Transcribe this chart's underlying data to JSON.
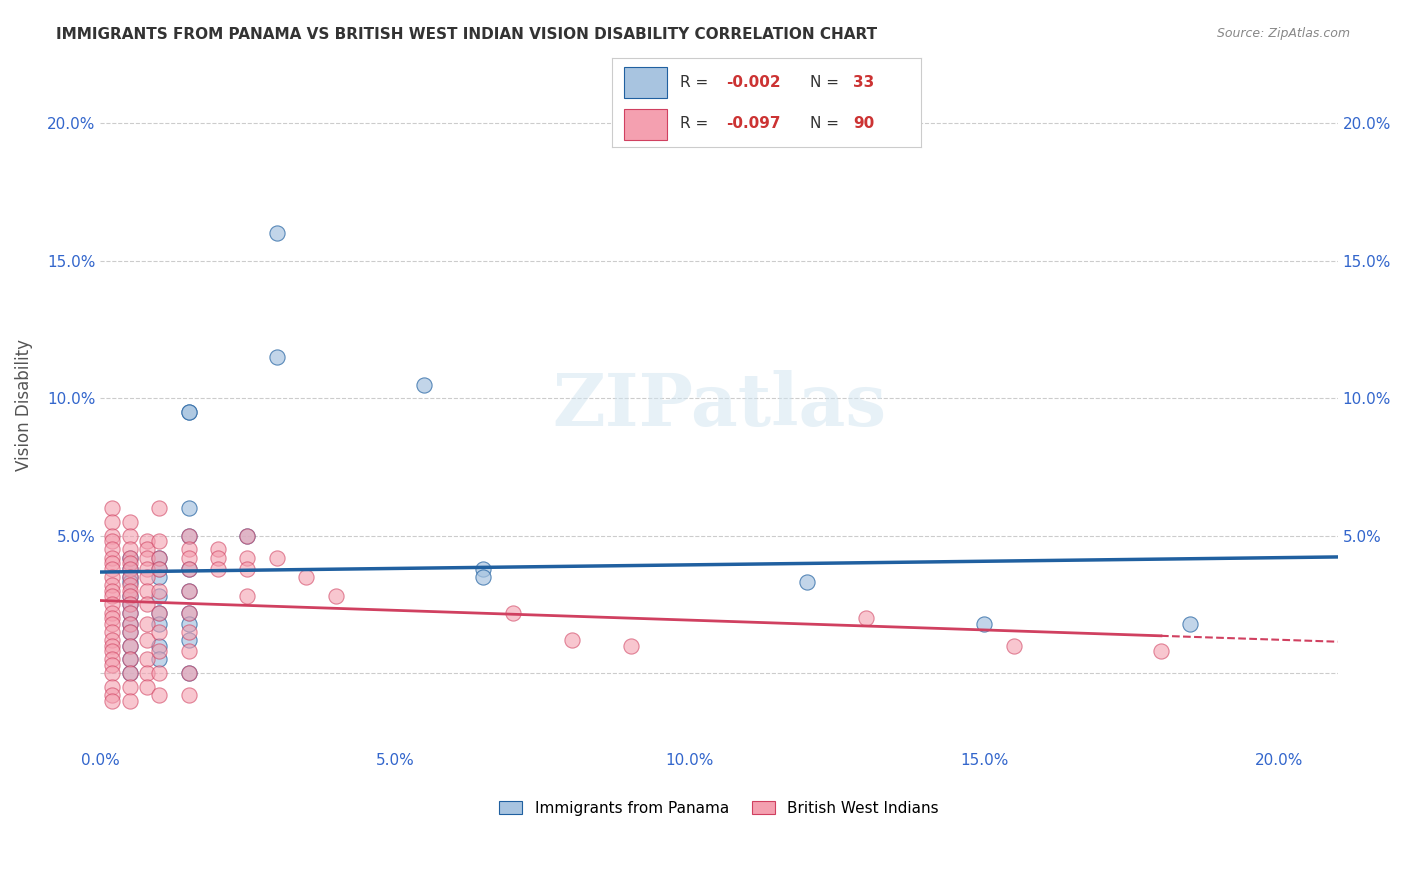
{
  "title": "IMMIGRANTS FROM PANAMA VS BRITISH WEST INDIAN VISION DISABILITY CORRELATION CHART",
  "source": "Source: ZipAtlas.com",
  "ylabel": "Vision Disability",
  "xlim": [
    0.0,
    0.21
  ],
  "ylim": [
    -0.025,
    0.22
  ],
  "color_panama": "#a8c4e0",
  "color_bwi": "#f4a0b0",
  "color_panama_line": "#2060a0",
  "color_bwi_line": "#d04060",
  "background_color": "#ffffff",
  "watermark": "ZIPatlas",
  "panama_scatter": [
    [
      0.005,
      0.038
    ],
    [
      0.005,
      0.042
    ],
    [
      0.005,
      0.035
    ],
    [
      0.005,
      0.033
    ],
    [
      0.005,
      0.028
    ],
    [
      0.005,
      0.025
    ],
    [
      0.005,
      0.022
    ],
    [
      0.005,
      0.018
    ],
    [
      0.005,
      0.015
    ],
    [
      0.005,
      0.01
    ],
    [
      0.005,
      0.005
    ],
    [
      0.005,
      0.0
    ],
    [
      0.01,
      0.042
    ],
    [
      0.01,
      0.038
    ],
    [
      0.01,
      0.035
    ],
    [
      0.01,
      0.028
    ],
    [
      0.01,
      0.022
    ],
    [
      0.01,
      0.018
    ],
    [
      0.01,
      0.01
    ],
    [
      0.01,
      0.005
    ],
    [
      0.015,
      0.095
    ],
    [
      0.015,
      0.095
    ],
    [
      0.015,
      0.06
    ],
    [
      0.015,
      0.05
    ],
    [
      0.015,
      0.038
    ],
    [
      0.015,
      0.03
    ],
    [
      0.015,
      0.022
    ],
    [
      0.015,
      0.018
    ],
    [
      0.015,
      0.012
    ],
    [
      0.015,
      0.0
    ],
    [
      0.03,
      0.16
    ],
    [
      0.03,
      0.115
    ],
    [
      0.025,
      0.05
    ],
    [
      0.055,
      0.105
    ],
    [
      0.065,
      0.038
    ],
    [
      0.065,
      0.035
    ],
    [
      0.12,
      0.033
    ],
    [
      0.15,
      0.018
    ],
    [
      0.185,
      0.018
    ]
  ],
  "bwi_scatter": [
    [
      0.002,
      0.06
    ],
    [
      0.002,
      0.055
    ],
    [
      0.002,
      0.05
    ],
    [
      0.002,
      0.048
    ],
    [
      0.002,
      0.045
    ],
    [
      0.002,
      0.042
    ],
    [
      0.002,
      0.04
    ],
    [
      0.002,
      0.038
    ],
    [
      0.002,
      0.035
    ],
    [
      0.002,
      0.032
    ],
    [
      0.002,
      0.03
    ],
    [
      0.002,
      0.028
    ],
    [
      0.002,
      0.025
    ],
    [
      0.002,
      0.022
    ],
    [
      0.002,
      0.02
    ],
    [
      0.002,
      0.018
    ],
    [
      0.002,
      0.015
    ],
    [
      0.002,
      0.012
    ],
    [
      0.002,
      0.01
    ],
    [
      0.002,
      0.008
    ],
    [
      0.002,
      0.005
    ],
    [
      0.002,
      0.003
    ],
    [
      0.002,
      0.0
    ],
    [
      0.002,
      -0.005
    ],
    [
      0.002,
      -0.008
    ],
    [
      0.002,
      -0.01
    ],
    [
      0.005,
      0.055
    ],
    [
      0.005,
      0.05
    ],
    [
      0.005,
      0.045
    ],
    [
      0.005,
      0.042
    ],
    [
      0.005,
      0.04
    ],
    [
      0.005,
      0.038
    ],
    [
      0.005,
      0.035
    ],
    [
      0.005,
      0.032
    ],
    [
      0.005,
      0.03
    ],
    [
      0.005,
      0.028
    ],
    [
      0.005,
      0.025
    ],
    [
      0.005,
      0.022
    ],
    [
      0.005,
      0.018
    ],
    [
      0.005,
      0.015
    ],
    [
      0.005,
      0.01
    ],
    [
      0.005,
      0.005
    ],
    [
      0.005,
      0.0
    ],
    [
      0.005,
      -0.005
    ],
    [
      0.005,
      -0.01
    ],
    [
      0.008,
      0.048
    ],
    [
      0.008,
      0.045
    ],
    [
      0.008,
      0.042
    ],
    [
      0.008,
      0.038
    ],
    [
      0.008,
      0.035
    ],
    [
      0.008,
      0.03
    ],
    [
      0.008,
      0.025
    ],
    [
      0.008,
      0.018
    ],
    [
      0.008,
      0.012
    ],
    [
      0.008,
      0.005
    ],
    [
      0.008,
      0.0
    ],
    [
      0.008,
      -0.005
    ],
    [
      0.01,
      0.06
    ],
    [
      0.01,
      0.048
    ],
    [
      0.01,
      0.042
    ],
    [
      0.01,
      0.038
    ],
    [
      0.01,
      0.03
    ],
    [
      0.01,
      0.022
    ],
    [
      0.01,
      0.015
    ],
    [
      0.01,
      0.008
    ],
    [
      0.01,
      0.0
    ],
    [
      0.01,
      -0.008
    ],
    [
      0.015,
      0.05
    ],
    [
      0.015,
      0.045
    ],
    [
      0.015,
      0.042
    ],
    [
      0.015,
      0.038
    ],
    [
      0.015,
      0.03
    ],
    [
      0.015,
      0.022
    ],
    [
      0.015,
      0.015
    ],
    [
      0.015,
      0.008
    ],
    [
      0.015,
      0.0
    ],
    [
      0.015,
      -0.008
    ],
    [
      0.02,
      0.045
    ],
    [
      0.02,
      0.042
    ],
    [
      0.02,
      0.038
    ],
    [
      0.025,
      0.05
    ],
    [
      0.025,
      0.042
    ],
    [
      0.025,
      0.038
    ],
    [
      0.025,
      0.028
    ],
    [
      0.03,
      0.042
    ],
    [
      0.035,
      0.035
    ],
    [
      0.04,
      0.028
    ],
    [
      0.07,
      0.022
    ],
    [
      0.08,
      0.012
    ],
    [
      0.09,
      0.01
    ],
    [
      0.13,
      0.02
    ],
    [
      0.155,
      0.01
    ],
    [
      0.18,
      0.008
    ]
  ]
}
